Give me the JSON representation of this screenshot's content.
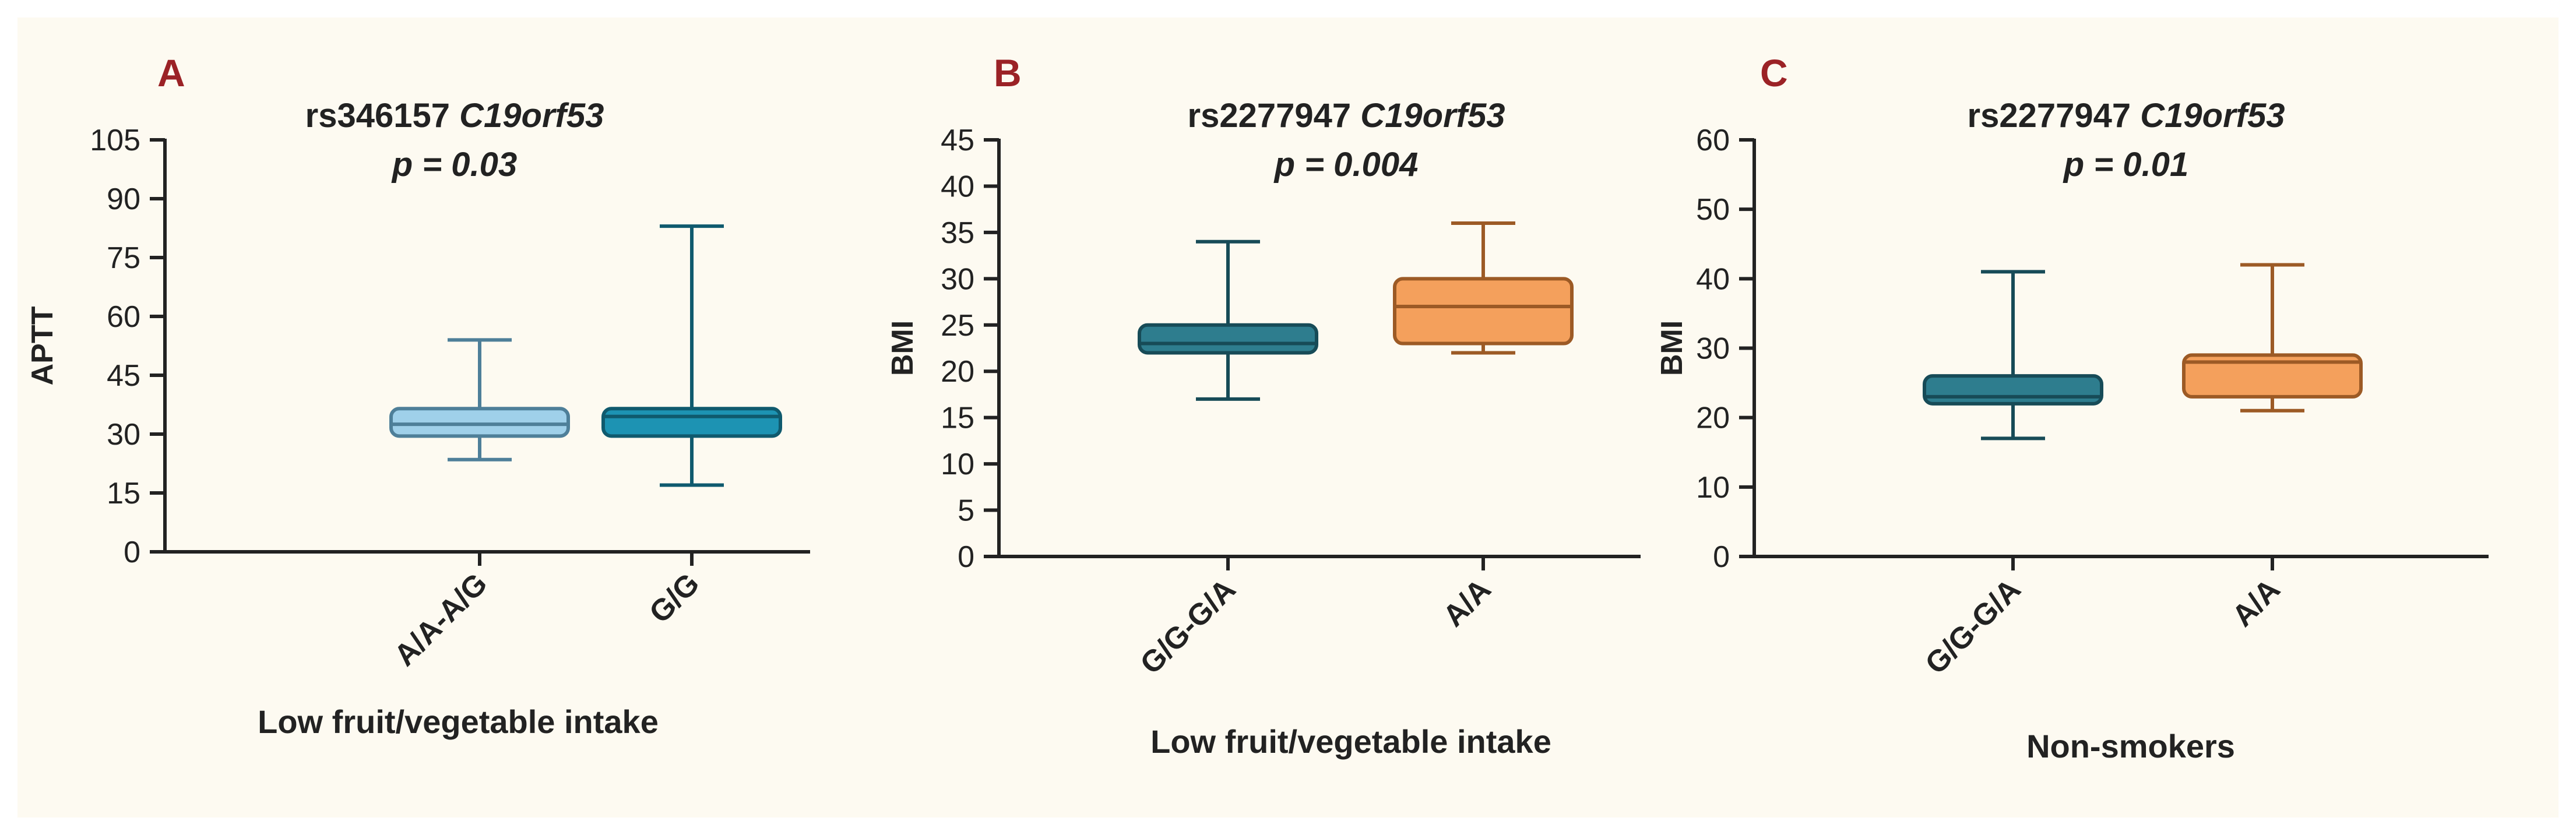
{
  "colors": {
    "background": "#fdfaf1",
    "axis": "#222222",
    "panel_letter": "#9b2226"
  },
  "chart_data": [
    {
      "type": "box",
      "panel": "A",
      "title_gene": "rs346157",
      "title_italic": "C19orf53",
      "p_value": "p = 0.03",
      "ylabel": "APTT",
      "xlabel": "Low fruit/vegetable intake",
      "ylim": [
        0,
        105
      ],
      "yticks": [
        0,
        15,
        30,
        45,
        60,
        75,
        90,
        105
      ],
      "categories": [
        "A/A-A/G",
        "G/G"
      ],
      "boxes": [
        {
          "category": "A/A-A/G",
          "min": 23.5,
          "q1": 29.5,
          "median": 32.5,
          "q3": 36.5,
          "max": 54,
          "fill": "#9fd0ea",
          "stroke": "#4e7f99"
        },
        {
          "category": "G/G",
          "min": 17,
          "q1": 29.5,
          "median": 34.5,
          "q3": 36.5,
          "max": 83,
          "fill": "#1d93b3",
          "stroke": "#0f5a6e"
        }
      ]
    },
    {
      "type": "box",
      "panel": "B",
      "title_gene": "rs2277947",
      "title_italic": "C19orf53",
      "p_value": "p = 0.004",
      "ylabel": "BMI",
      "xlabel": "Low fruit/vegetable intake",
      "ylim": [
        0,
        45
      ],
      "yticks": [
        0,
        5,
        10,
        15,
        20,
        25,
        30,
        35,
        40,
        45
      ],
      "categories": [
        "G/G-G/A",
        "A/A"
      ],
      "boxes": [
        {
          "category": "G/G-G/A",
          "min": 17,
          "q1": 22,
          "median": 23,
          "q3": 25,
          "max": 34,
          "fill": "#2e7d8e",
          "stroke": "#174b57"
        },
        {
          "category": "A/A",
          "min": 22,
          "q1": 23,
          "median": 27,
          "q3": 30,
          "max": 36,
          "fill": "#f4a05c",
          "stroke": "#9c5a25"
        }
      ]
    },
    {
      "type": "box",
      "panel": "C",
      "title_gene": "rs2277947",
      "title_italic": "C19orf53",
      "p_value": "p = 0.01",
      "ylabel": "BMI",
      "xlabel": "Non-smokers",
      "ylim": [
        0,
        60
      ],
      "yticks": [
        0,
        10,
        20,
        30,
        40,
        50,
        60
      ],
      "categories": [
        "G/G-G/A",
        "A/A"
      ],
      "boxes": [
        {
          "category": "G/G-G/A",
          "min": 17,
          "q1": 22,
          "median": 23,
          "q3": 26,
          "max": 41,
          "fill": "#2e7d8e",
          "stroke": "#174b57"
        },
        {
          "category": "A/A",
          "min": 21,
          "q1": 23,
          "median": 28,
          "q3": 29,
          "max": 42,
          "fill": "#f4a05c",
          "stroke": "#9c5a25"
        }
      ]
    }
  ]
}
